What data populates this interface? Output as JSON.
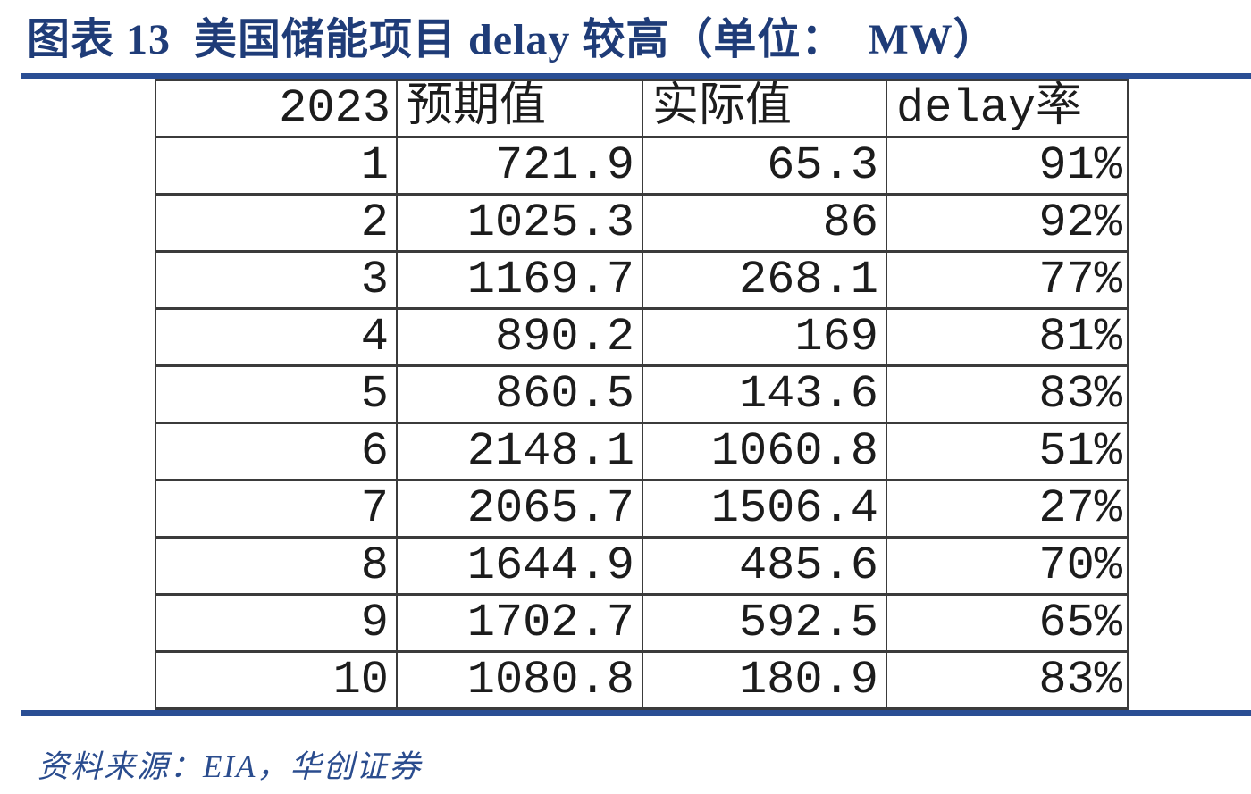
{
  "figure": {
    "title": "图表 13  美国储能项目 delay 较高（单位：  MW）",
    "source_label": "资料来源：EIA，华创证券",
    "unit": "MW"
  },
  "colors": {
    "title_navy": "#1F3C78",
    "rule_blue": "#2A4E94",
    "source_navy": "#2A4C8E",
    "table_border": "#3B3B3B",
    "table_text": "#1C1C1C",
    "background": "#FFFFFF"
  },
  "chart_data": {
    "type": "table",
    "title": "图表 13 美国储能项目 delay 较高（单位：MW）",
    "unit": "MW",
    "columns": [
      "2023",
      "预期值",
      "实际值",
      "delay率"
    ],
    "rows": [
      [
        "1",
        "721.9",
        "65.3",
        "91%"
      ],
      [
        "2",
        "1025.3",
        "86",
        "92%"
      ],
      [
        "3",
        "1169.7",
        "268.1",
        "77%"
      ],
      [
        "4",
        "890.2",
        "169",
        "81%"
      ],
      [
        "5",
        "860.5",
        "143.6",
        "83%"
      ],
      [
        "6",
        "2148.1",
        "1060.8",
        "51%"
      ],
      [
        "7",
        "2065.7",
        "1506.4",
        "27%"
      ],
      [
        "8",
        "1644.9",
        "485.6",
        "70%"
      ],
      [
        "9",
        "1702.7",
        "592.5",
        "65%"
      ],
      [
        "10",
        "1080.8",
        "180.9",
        "83%"
      ]
    ],
    "source": "资料来源：EIA，华创证券"
  }
}
